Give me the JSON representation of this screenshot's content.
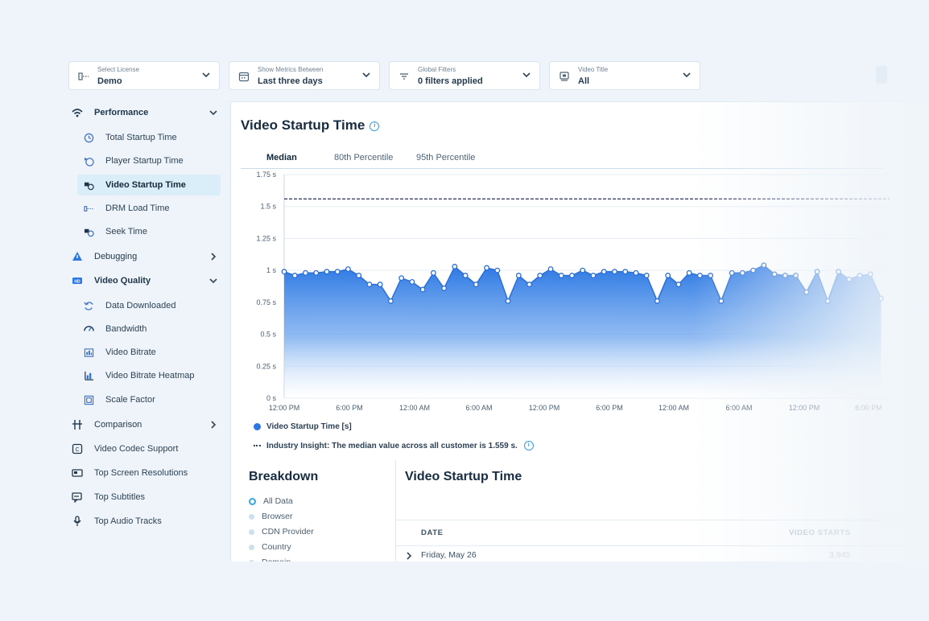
{
  "filters": [
    {
      "label": "Select License",
      "value": "Demo",
      "icon": "license-icon"
    },
    {
      "label": "Show Metrics Between",
      "value": "Last three days",
      "icon": "calendar-icon"
    },
    {
      "label": "Global Filters",
      "value": "0 filters applied",
      "icon": "filter-icon"
    },
    {
      "label": "Video Title",
      "value": "All",
      "icon": "video-title-icon"
    }
  ],
  "sidebar": {
    "items": [
      {
        "label": "Performance",
        "icon": "wifi-icon"
      },
      {
        "label": "Total Startup Time",
        "icon": "clock-icon"
      },
      {
        "label": "Player Startup Time",
        "icon": "player-clock-icon"
      },
      {
        "label": "Video Startup Time",
        "icon": "video-clock-icon"
      },
      {
        "label": "DRM Load Time",
        "icon": "drm-icon"
      },
      {
        "label": "Seek Time",
        "icon": "seek-icon"
      },
      {
        "label": "Debugging",
        "icon": "warning-icon"
      },
      {
        "label": "Video Quality",
        "icon": "hd-icon"
      },
      {
        "label": "Data Downloaded",
        "icon": "refresh-icon"
      },
      {
        "label": "Bandwidth",
        "icon": "gauge-icon"
      },
      {
        "label": "Video Bitrate",
        "icon": "bitrate-icon"
      },
      {
        "label": "Video Bitrate Heatmap",
        "icon": "heatmap-icon"
      },
      {
        "label": "Scale Factor",
        "icon": "scale-icon"
      },
      {
        "label": "Comparison",
        "icon": "compare-icon"
      },
      {
        "label": "Video Codec Support",
        "icon": "codec-icon"
      },
      {
        "label": "Top Screen Resolutions",
        "icon": "screen-icon"
      },
      {
        "label": "Top Subtitles",
        "icon": "subtitles-icon"
      },
      {
        "label": "Top Audio Tracks",
        "icon": "audio-icon"
      }
    ]
  },
  "main": {
    "title": "Video Startup Time",
    "tabs": [
      "Median",
      "80th Percentile",
      "95th Percentile"
    ],
    "legend_series": "Video Startup Time [s]",
    "legend_insight": "Industry Insight: The median value across all customer is 1.559 s."
  },
  "breakdown": {
    "title": "Breakdown",
    "items": [
      "All Data",
      "Browser",
      "CDN Provider",
      "Country",
      "Domain"
    ]
  },
  "table": {
    "title": "Video Startup Time",
    "col_date": "DATE",
    "col_starts": "VIDEO STARTS",
    "row_date": "Friday, May 26",
    "row_starts": "3,945"
  },
  "colors": {
    "accent": "#2b78e4",
    "active_bg": "#daeef9",
    "reference": "#3b3f6b"
  },
  "chart_data": {
    "type": "area",
    "ylabel": "",
    "ylim": [
      0,
      1.75
    ],
    "yticks": [
      "0 s",
      "0.25 s",
      "0.5 s",
      "0.75 s",
      "1 s",
      "1.25 s",
      "1.5 s",
      "1.75 s"
    ],
    "xticks": [
      "12:00 PM",
      "6:00 PM",
      "12:00 AM",
      "6:00 AM",
      "12:00 PM",
      "6:00 PM",
      "12:00 AM",
      "6:00 AM",
      "12:00 PM",
      "6:00 PM"
    ],
    "reference_line": 1.559,
    "series": [
      {
        "name": "Video Startup Time [s]",
        "values": [
          0.99,
          0.96,
          0.98,
          0.98,
          0.99,
          0.99,
          1.01,
          0.96,
          0.89,
          0.89,
          0.76,
          0.94,
          0.91,
          0.85,
          0.98,
          0.86,
          1.03,
          0.96,
          0.89,
          1.02,
          1.0,
          0.76,
          0.96,
          0.89,
          0.96,
          1.01,
          0.96,
          0.96,
          1.0,
          0.96,
          0.99,
          0.99,
          0.99,
          0.98,
          0.96,
          0.76,
          0.96,
          0.89,
          0.98,
          0.96,
          0.96,
          0.76,
          0.98,
          0.98,
          1.0,
          1.04,
          0.97,
          0.96,
          0.96,
          0.83,
          0.99,
          0.76,
          0.99,
          0.93,
          0.96,
          0.97,
          0.78
        ]
      }
    ]
  }
}
